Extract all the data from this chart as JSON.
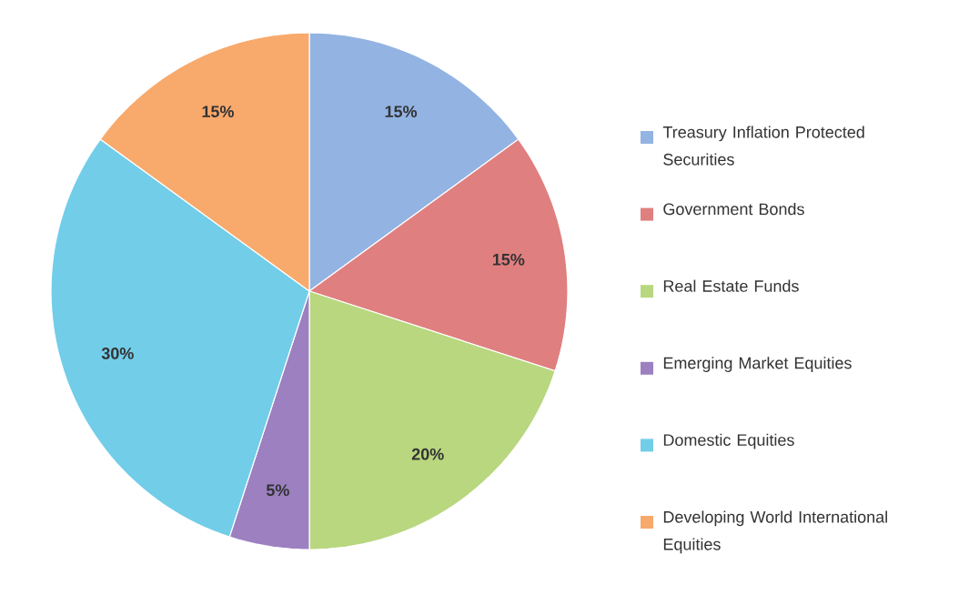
{
  "chart_data": {
    "type": "pie",
    "categories": [
      "Treasury Inflation Protected Securities",
      "Government Bonds",
      "Real Estate Funds",
      "Emerging Market Equities",
      "Domestic Equities",
      "Developing World International Equities"
    ],
    "values": [
      15,
      15,
      20,
      5,
      30,
      15
    ],
    "value_labels": [
      "15%",
      "15%",
      "20%",
      "5%",
      "30%",
      "15%"
    ],
    "colors": [
      "#93b3e3",
      "#e07f7f",
      "#b8d77f",
      "#9c80c0",
      "#72cde9",
      "#f8a96c"
    ],
    "legend": "right"
  }
}
